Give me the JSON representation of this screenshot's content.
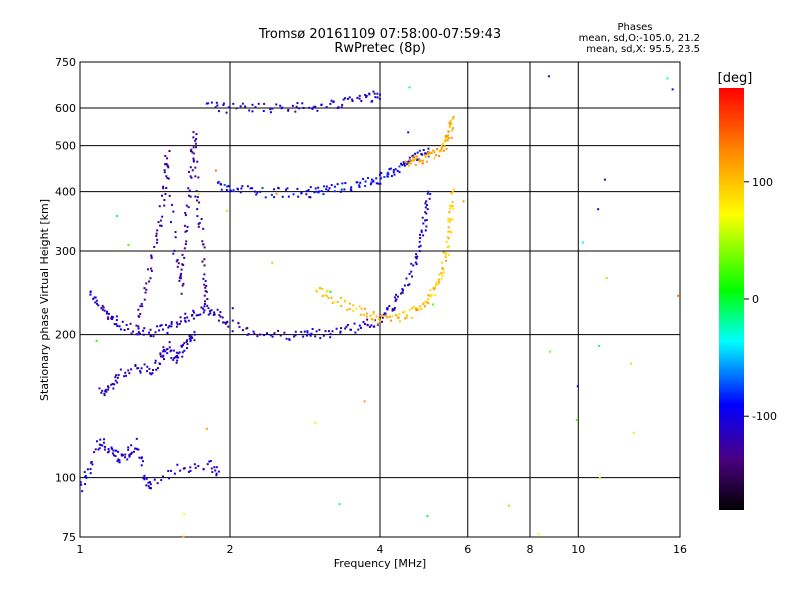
{
  "chart_data": {
    "type": "scatter",
    "title": "Tromsø 20161109 07:58:00-07:59:43",
    "subtitle": "RwPretec (8p)",
    "xlabel": "Frequency [MHz]",
    "ylabel": "Stationary phase Virtual Height [km]",
    "xscale": "log",
    "yscale": "log",
    "xlim": [
      1,
      16
    ],
    "ylim": [
      75,
      750
    ],
    "x_ticks": [
      1,
      2,
      4,
      6,
      8,
      10,
      16
    ],
    "x_tick_labels": [
      "1",
      "2",
      "4",
      "6",
      "8",
      "10",
      "16"
    ],
    "y_ticks": [
      75,
      100,
      200,
      300,
      400,
      500,
      600,
      750
    ],
    "y_tick_labels": [
      "75",
      "100",
      "200",
      "300",
      "400",
      "500",
      "600",
      "750"
    ],
    "grid": true,
    "phases_legend": {
      "title": "Phases",
      "line1": "mean, sd,O:-105.0, 21.2",
      "line2": "mean, sd,X:  95.5, 23.5"
    },
    "colorbar": {
      "label": "[deg]",
      "min": -180,
      "max": 180,
      "ticks": [
        100,
        0,
        -100
      ],
      "tick_labels": [
        "100",
        "0",
        "-100"
      ]
    },
    "series": [
      {
        "mode": "O",
        "phase": -110,
        "points": [
          [
            1.05,
            245
          ],
          [
            1.1,
            230
          ],
          [
            1.15,
            218
          ],
          [
            1.2,
            210
          ],
          [
            1.3,
            205
          ],
          [
            1.4,
            203
          ],
          [
            1.5,
            206
          ],
          [
            1.6,
            215
          ],
          [
            1.7,
            222
          ],
          [
            1.8,
            225
          ],
          [
            1.9,
            220
          ],
          [
            2.0,
            210
          ],
          [
            2.2,
            203
          ],
          [
            2.5,
            200
          ],
          [
            2.8,
            200
          ],
          [
            3.0,
            201
          ],
          [
            3.3,
            204
          ],
          [
            3.6,
            208
          ],
          [
            3.9,
            212
          ],
          [
            4.1,
            220
          ],
          [
            4.3,
            235
          ],
          [
            4.5,
            255
          ],
          [
            4.7,
            285
          ],
          [
            4.85,
            320
          ],
          [
            4.95,
            360
          ],
          [
            5.0,
            400
          ]
        ]
      },
      {
        "mode": "O",
        "phase": -125,
        "points": [
          [
            1.3,
            210
          ],
          [
            1.35,
            240
          ],
          [
            1.4,
            290
          ],
          [
            1.45,
            350
          ],
          [
            1.48,
            420
          ],
          [
            1.5,
            480
          ],
          [
            1.55,
            300
          ],
          [
            1.6,
            250
          ],
          [
            1.62,
            300
          ],
          [
            1.65,
            380
          ],
          [
            1.68,
            460
          ],
          [
            1.7,
            530
          ],
          [
            1.72,
            400
          ],
          [
            1.75,
            330
          ],
          [
            1.78,
            260
          ],
          [
            1.8,
            230
          ]
        ]
      },
      {
        "mode": "O",
        "phase": -115,
        "points": [
          [
            1.1,
            150
          ],
          [
            1.15,
            155
          ],
          [
            1.2,
            165
          ],
          [
            1.3,
            170
          ],
          [
            1.4,
            168
          ],
          [
            1.45,
            180
          ],
          [
            1.5,
            190
          ],
          [
            1.55,
            175
          ],
          [
            1.6,
            185
          ],
          [
            1.65,
            195
          ],
          [
            1.7,
            200
          ]
        ]
      },
      {
        "mode": "O",
        "phase": -110,
        "points": [
          [
            1.0,
            95
          ],
          [
            1.05,
            105
          ],
          [
            1.1,
            120
          ],
          [
            1.15,
            115
          ],
          [
            1.2,
            110
          ],
          [
            1.25,
            112
          ],
          [
            1.3,
            118
          ],
          [
            1.35,
            100
          ],
          [
            1.4,
            96
          ],
          [
            1.6,
            105
          ],
          [
            1.8,
            107
          ],
          [
            1.9,
            103
          ]
        ]
      },
      {
        "mode": "O",
        "phase": -95,
        "points": [
          [
            1.9,
            410
          ],
          [
            2.0,
            405
          ],
          [
            2.2,
            400
          ],
          [
            2.5,
            398
          ],
          [
            2.8,
            398
          ],
          [
            3.0,
            400
          ],
          [
            3.2,
            403
          ],
          [
            3.5,
            410
          ],
          [
            3.8,
            420
          ],
          [
            4.0,
            425
          ],
          [
            4.2,
            435
          ],
          [
            4.4,
            450
          ],
          [
            4.6,
            465
          ],
          [
            4.8,
            475
          ],
          [
            5.0,
            485
          ]
        ]
      },
      {
        "mode": "O",
        "phase": -110,
        "points": [
          [
            1.8,
            612
          ],
          [
            2.0,
            600
          ],
          [
            2.3,
            600
          ],
          [
            2.6,
            602
          ],
          [
            2.9,
            605
          ],
          [
            3.2,
            610
          ],
          [
            3.5,
            620
          ],
          [
            3.8,
            630
          ],
          [
            4.0,
            640
          ]
        ]
      },
      {
        "mode": "X",
        "phase": 100,
        "points": [
          [
            3.0,
            252
          ],
          [
            3.2,
            240
          ],
          [
            3.5,
            228
          ],
          [
            3.8,
            220
          ],
          [
            4.0,
            215
          ],
          [
            4.3,
            216
          ],
          [
            4.6,
            222
          ],
          [
            4.9,
            232
          ],
          [
            5.1,
            245
          ],
          [
            5.25,
            260
          ],
          [
            5.4,
            285
          ],
          [
            5.5,
            320
          ],
          [
            5.55,
            360
          ],
          [
            5.6,
            400
          ]
        ]
      },
      {
        "mode": "X",
        "phase": 110,
        "points": [
          [
            4.5,
            455
          ],
          [
            4.7,
            465
          ],
          [
            4.9,
            470
          ],
          [
            5.1,
            478
          ],
          [
            5.3,
            490
          ],
          [
            5.45,
            510
          ],
          [
            5.55,
            540
          ],
          [
            5.6,
            570
          ]
        ]
      }
    ],
    "scatter_noise": {
      "phases": [
        -110,
        120,
        30,
        60,
        -20
      ],
      "count": 40
    }
  }
}
